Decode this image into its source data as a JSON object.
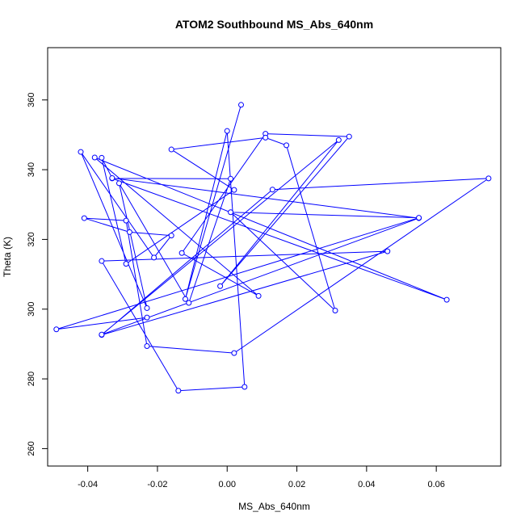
{
  "chart_data": {
    "type": "line",
    "title": "ATOM2 Southbound MS_Abs_640nm",
    "xlabel": "MS_Abs_640nm",
    "ylabel": "Theta (K)",
    "xlim": [
      -0.0515,
      0.0785
    ],
    "ylim": [
      255,
      375
    ],
    "xticks": [
      -0.04,
      -0.02,
      0.0,
      0.02,
      0.04,
      0.06
    ],
    "xtick_labels": [
      "-0.04",
      "-0.02",
      "0.00",
      "0.02",
      "0.04",
      "0.06"
    ],
    "yticks": [
      260,
      280,
      300,
      320,
      340,
      360
    ],
    "ytick_labels": [
      "260",
      "280",
      "300",
      "320",
      "340",
      "360"
    ],
    "grid": false,
    "line_color": "#0000ff",
    "marker": "open-circle",
    "series": [
      {
        "points": [
          {
            "x": 0.004,
            "y": 358.6
          },
          {
            "x": -0.012,
            "y": 302.9
          },
          {
            "x": 0.0,
            "y": 351.1
          },
          {
            "x": 0.005,
            "y": 277.7
          },
          {
            "x": -0.014,
            "y": 276.6
          },
          {
            "x": -0.036,
            "y": 313.8
          },
          {
            "x": 0.046,
            "y": 316.6
          },
          {
            "x": -0.036,
            "y": 292.6
          },
          {
            "x": 0.013,
            "y": 334.3
          },
          {
            "x": 0.075,
            "y": 337.5
          },
          {
            "x": 0.002,
            "y": 287.4
          },
          {
            "x": -0.023,
            "y": 289.4
          },
          {
            "x": -0.029,
            "y": 325.4
          },
          {
            "x": -0.041,
            "y": 326.1
          },
          {
            "x": -0.028,
            "y": 322.1
          },
          {
            "x": -0.016,
            "y": 321.1
          },
          {
            "x": -0.021,
            "y": 314.8
          },
          {
            "x": -0.042,
            "y": 345.1
          },
          {
            "x": -0.023,
            "y": 300.3
          },
          {
            "x": -0.031,
            "y": 336.1
          },
          {
            "x": -0.011,
            "y": 301.8
          },
          {
            "x": 0.001,
            "y": 337.4
          },
          {
            "x": -0.033,
            "y": 337.5
          },
          {
            "x": 0.063,
            "y": 302.7
          },
          {
            "x": -0.038,
            "y": 343.5
          },
          {
            "x": 0.009,
            "y": 303.8
          },
          {
            "x": -0.013,
            "y": 316.1
          },
          {
            "x": 0.011,
            "y": 350.3
          },
          {
            "x": 0.035,
            "y": 349.5
          },
          {
            "x": -0.002,
            "y": 306.6
          },
          {
            "x": 0.032,
            "y": 348.5
          },
          {
            "x": -0.036,
            "y": 292.7
          },
          {
            "x": 0.055,
            "y": 326.1
          },
          {
            "x": -0.033,
            "y": 337.6
          },
          {
            "x": -0.036,
            "y": 343.4
          },
          {
            "x": -0.029,
            "y": 313.0
          },
          {
            "x": 0.002,
            "y": 334.2
          },
          {
            "x": -0.016,
            "y": 345.8
          },
          {
            "x": 0.011,
            "y": 349.2
          },
          {
            "x": 0.017,
            "y": 347.0
          },
          {
            "x": 0.031,
            "y": 299.6
          },
          {
            "x": 0.001,
            "y": 327.8
          },
          {
            "x": 0.055,
            "y": 326.2
          },
          {
            "x": -0.049,
            "y": 294.2
          },
          {
            "x": -0.023,
            "y": 297.6
          }
        ]
      }
    ]
  }
}
